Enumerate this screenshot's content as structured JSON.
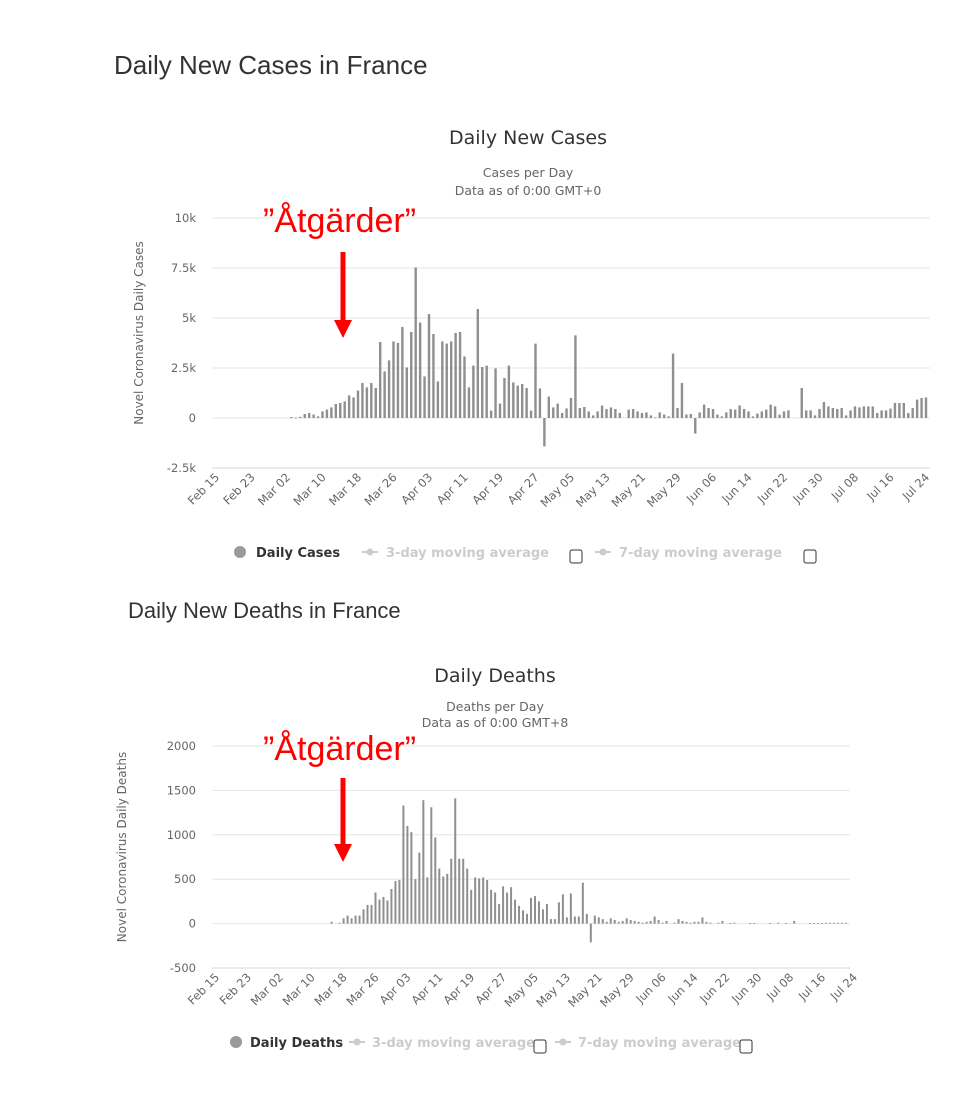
{
  "page": {
    "cases_heading": "Daily New Cases in France",
    "deaths_heading": "Daily New Deaths in France"
  },
  "colors": {
    "bar": "#8f8f8f",
    "grid": "#e6e6e6",
    "annotation": "#ff0000",
    "legend_inactive": "#cccccc"
  },
  "chart_data": [
    {
      "type": "bar",
      "title": "Daily New Cases",
      "subtitle": [
        "Cases per Day",
        "Data as of 0:00 GMT+0"
      ],
      "ylabel": "Novel Coronavirus Daily Cases",
      "xlabel": "",
      "ylim": [
        -2500,
        10000
      ],
      "yticks": [
        10000,
        7500,
        5000,
        2500,
        0,
        -2500
      ],
      "ytick_labels": [
        "10k",
        "7.5k",
        "5k",
        "2.5k",
        "0",
        "-2.5k"
      ],
      "x_start": "Feb 15",
      "xtick_labels": [
        "Feb 15",
        "Feb 23",
        "Mar 02",
        "Mar 10",
        "Mar 18",
        "Mar 26",
        "Apr 03",
        "Apr 11",
        "Apr 19",
        "Apr 27",
        "May 05",
        "May 13",
        "May 21",
        "May 29",
        "Jun 06",
        "Jun 14",
        "Jun 22",
        "Jun 30",
        "Jul 08",
        "Jul 16",
        "Jul 24"
      ],
      "xtick_every_days": 8,
      "grid": true,
      "legend": {
        "placement": "bottom",
        "items": [
          {
            "label": "Daily Cases",
            "active": true
          },
          {
            "label": "3-day moving average",
            "active": false,
            "checked": false
          },
          {
            "label": "7-day moving average",
            "active": false,
            "checked": false
          }
        ]
      },
      "annotation": {
        "text": "”Åtgärder”",
        "points_to": "Mar 17"
      },
      "values": [
        0,
        0,
        0,
        0,
        0,
        0,
        0,
        0,
        0,
        0,
        0,
        0,
        0,
        0,
        0,
        0,
        0,
        50,
        20,
        60,
        200,
        250,
        170,
        80,
        330,
        420,
        530,
        700,
        750,
        830,
        1130,
        1030,
        1370,
        1750,
        1530,
        1750,
        1500,
        3800,
        2330,
        2880,
        3830,
        3750,
        4550,
        2530,
        4300,
        7530,
        4770,
        2080,
        5200,
        4200,
        1830,
        3830,
        3720,
        3830,
        4250,
        4300,
        3080,
        1530,
        2620,
        5450,
        2550,
        2620,
        370,
        2480,
        720,
        2000,
        2620,
        1780,
        1620,
        1700,
        1500,
        370,
        3720,
        1480,
        -1420,
        1070,
        530,
        720,
        250,
        480,
        1000,
        4130,
        500,
        550,
        330,
        130,
        330,
        620,
        450,
        530,
        450,
        250,
        0,
        420,
        450,
        330,
        250,
        280,
        130,
        30,
        280,
        170,
        80,
        3220,
        500,
        1750,
        170,
        200,
        -780,
        280,
        670,
        500,
        450,
        170,
        80,
        280,
        450,
        420,
        630,
        450,
        330,
        80,
        220,
        330,
        420,
        670,
        580,
        170,
        330,
        380,
        0,
        0,
        1500,
        380,
        380,
        130,
        450,
        800,
        580,
        500,
        450,
        500,
        130,
        380,
        580,
        530,
        580,
        580,
        580,
        250,
        380,
        380,
        470,
        750,
        750,
        750,
        250,
        500,
        920,
        1000,
        1030
      ]
    },
    {
      "type": "bar",
      "title": "Daily Deaths",
      "subtitle": [
        "Deaths per Day",
        "Data as of 0:00 GMT+8"
      ],
      "ylabel": "Novel Coronavirus Daily Deaths",
      "xlabel": "",
      "ylim": [
        -500,
        2000
      ],
      "yticks": [
        2000,
        1500,
        1000,
        500,
        0,
        -500
      ],
      "ytick_labels": [
        "2000",
        "1500",
        "1000",
        "500",
        "0",
        "-500"
      ],
      "x_start": "Feb 15",
      "xtick_labels": [
        "Feb 15",
        "Feb 23",
        "Mar 02",
        "Mar 10",
        "Mar 18",
        "Mar 26",
        "Apr 03",
        "Apr 11",
        "Apr 19",
        "Apr 27",
        "May 05",
        "May 13",
        "May 21",
        "May 29",
        "Jun 06",
        "Jun 14",
        "Jun 22",
        "Jun 30",
        "Jul 08",
        "Jul 16",
        "Jul 24"
      ],
      "xtick_every_days": 8,
      "grid": true,
      "legend": {
        "placement": "bottom",
        "items": [
          {
            "label": "Daily Deaths",
            "active": true
          },
          {
            "label": "3-day moving average",
            "active": false,
            "checked": false
          },
          {
            "label": "7-day moving average",
            "active": false,
            "checked": false
          }
        ]
      },
      "annotation": {
        "text": "”Åtgärder”",
        "points_to": "Mar 17"
      },
      "values": [
        0,
        0,
        0,
        0,
        0,
        0,
        0,
        0,
        0,
        0,
        0,
        0,
        0,
        0,
        0,
        0,
        0,
        0,
        0,
        0,
        0,
        0,
        0,
        0,
        0,
        0,
        0,
        0,
        0,
        20,
        0,
        10,
        60,
        90,
        60,
        90,
        90,
        160,
        210,
        210,
        350,
        270,
        300,
        260,
        390,
        480,
        490,
        1330,
        1100,
        1030,
        500,
        800,
        1390,
        520,
        1310,
        970,
        620,
        530,
        560,
        730,
        1410,
        730,
        730,
        620,
        380,
        520,
        510,
        520,
        490,
        380,
        350,
        220,
        420,
        350,
        410,
        270,
        200,
        150,
        110,
        290,
        310,
        250,
        160,
        220,
        50,
        50,
        240,
        330,
        70,
        340,
        80,
        80,
        460,
        110,
        -210,
        90,
        70,
        50,
        20,
        60,
        40,
        20,
        30,
        60,
        40,
        30,
        20,
        10,
        20,
        30,
        80,
        40,
        10,
        30,
        0,
        10,
        50,
        30,
        20,
        10,
        20,
        20,
        70,
        20,
        10,
        0,
        10,
        30,
        0,
        5,
        10,
        0,
        0,
        0,
        5,
        5,
        0,
        0,
        0,
        5,
        0,
        10,
        0,
        5,
        0,
        30,
        0,
        0,
        0,
        5,
        5,
        5,
        5,
        10,
        10,
        10,
        10,
        10,
        10
      ]
    }
  ]
}
